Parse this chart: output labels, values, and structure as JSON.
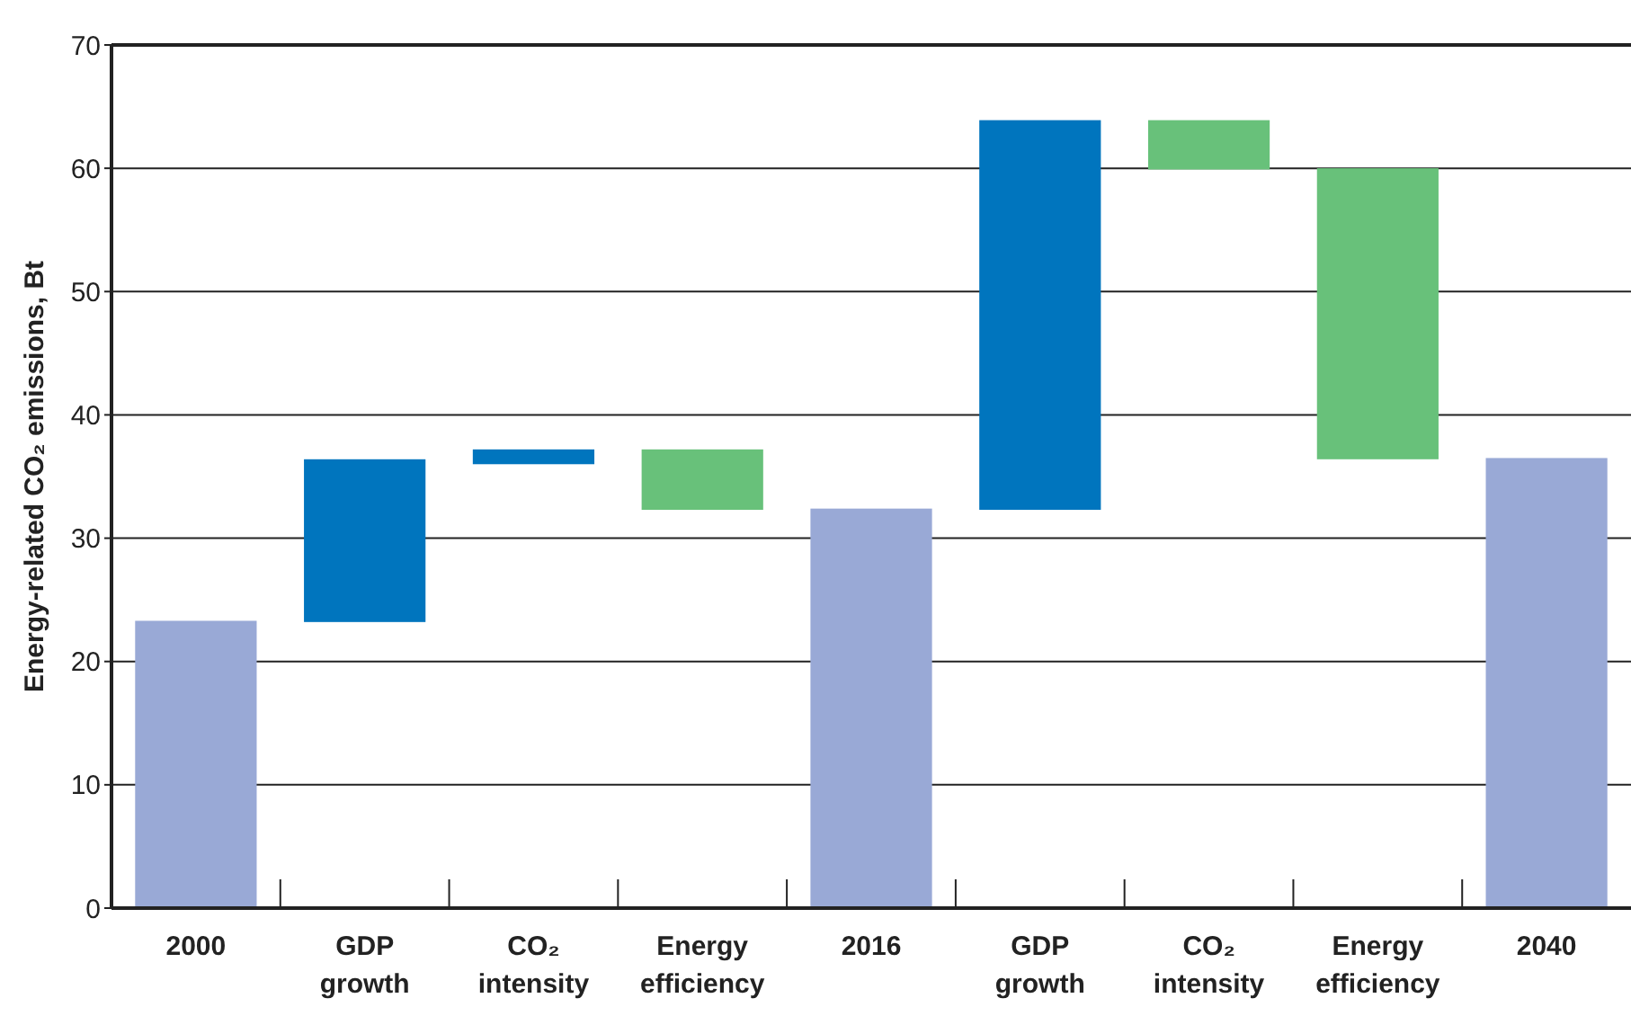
{
  "chart_data": {
    "type": "bar",
    "ylabel": "Energy-related CO₂ emissions, Bt",
    "categories": [
      "2000",
      "GDP growth",
      "CO₂ intensity",
      "Energy efficiency",
      "2016",
      "GDP growth",
      "CO₂ intensity",
      "Energy efficiency",
      "2040"
    ],
    "values": [
      23.3,
      13.2,
      1.2,
      -4.9,
      32.4,
      31.6,
      -4.0,
      -23.6,
      36.5
    ],
    "base": [
      0,
      23.2,
      36.0,
      37.2,
      0,
      32.3,
      63.9,
      60.0,
      0
    ],
    "colors": [
      "#99a9d6",
      "#0075be",
      "#0075be",
      "#68c17a",
      "#99a9d6",
      "#0075be",
      "#68c17a",
      "#68c17a",
      "#99a9d6"
    ],
    "ylim": [
      0,
      70
    ],
    "yticks": [
      0,
      10,
      20,
      30,
      40,
      50,
      60,
      70
    ],
    "grid": "y"
  }
}
